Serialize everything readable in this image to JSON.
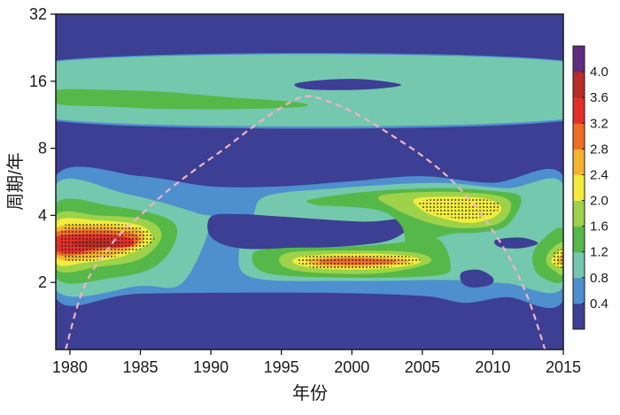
{
  "chart_data": {
    "type": "heatmap",
    "subtype": "wavelet power spectrum",
    "title": "",
    "xlabel": "年份",
    "ylabel": "周期/年",
    "x_range": [
      1979,
      2015
    ],
    "y_range": [
      1,
      32
    ],
    "y_scale": "log2",
    "x_ticks": [
      "1980",
      "1985",
      "1990",
      "1995",
      "2000",
      "2005",
      "2010",
      "2015"
    ],
    "y_ticks": [
      "2",
      "4",
      "8",
      "16",
      "32"
    ],
    "colorbar": {
      "labels": [
        "0.4",
        "0.8",
        "1.2",
        "1.6",
        "2.0",
        "2.4",
        "2.8",
        "3.2",
        "3.6",
        "4.0"
      ],
      "colors": [
        "#3c3f93",
        "#4e8fce",
        "#74c8ae",
        "#56b848",
        "#9dd24a",
        "#f2ec3c",
        "#f5b333",
        "#ef6d25",
        "#e1302a",
        "#b82d27",
        "#5e2d80"
      ]
    },
    "cone_of_influence": {
      "x": [
        1979.7,
        1981,
        1983,
        1985,
        1987,
        1989,
        1991,
        1993,
        1995,
        1996.8,
        1999,
        2001,
        2003,
        2005,
        2007,
        2009,
        2011,
        2012.5,
        2013.7
      ],
      "y": [
        1.0,
        1.9,
        3.0,
        4.0,
        5.2,
        6.5,
        8.0,
        10.0,
        12.2,
        13.7,
        12.5,
        10.8,
        9.0,
        7.4,
        5.8,
        4.2,
        2.7,
        1.7,
        1.0
      ],
      "color": "#f3b3c3",
      "style": "dashed"
    },
    "background_color": "#3c3f93",
    "power_regions": [
      {
        "level": 0.4,
        "color": "#4e8fce",
        "points": [
          [
            1979,
            19.8
          ],
          [
            2015,
            19.8
          ],
          [
            2015,
            10.6
          ],
          [
            1979,
            10.6
          ]
        ]
      },
      {
        "level": 0.8,
        "color": "#74c8ae",
        "points": [
          [
            1979,
            19.6
          ],
          [
            2015,
            19.6
          ],
          [
            2015,
            10.8
          ],
          [
            1979,
            10.8
          ]
        ]
      },
      {
        "level": 0.4,
        "color": "#3c3f93",
        "points": [
          [
            1996,
            15.6
          ],
          [
            1998.5,
            16.3
          ],
          [
            2001,
            16.3
          ],
          [
            2003.5,
            15.4
          ],
          [
            2001,
            14.7
          ],
          [
            1997,
            14.7
          ]
        ]
      },
      {
        "level": 1.2,
        "color": "#56b848",
        "points": [
          [
            1979,
            14.6
          ],
          [
            1983,
            14.6
          ],
          [
            1987,
            14.3
          ],
          [
            1991,
            13.6
          ],
          [
            1996,
            12.9
          ],
          [
            1996.5,
            12.3
          ],
          [
            1992,
            12.0
          ],
          [
            1987,
            12.0
          ],
          [
            1983,
            12.3
          ],
          [
            1979,
            12.7
          ]
        ]
      },
      {
        "level": 0.4,
        "color": "#4e8fce",
        "points": [
          [
            1979,
            6.0
          ],
          [
            1985,
            6.0
          ],
          [
            1990,
            5.4
          ],
          [
            1995,
            5.4
          ],
          [
            2000,
            5.7
          ],
          [
            2005,
            6.0
          ],
          [
            2010,
            5.6
          ],
          [
            2015,
            6.0
          ],
          [
            2015,
            1.67
          ],
          [
            2011,
            1.72
          ],
          [
            2008,
            1.62
          ],
          [
            2005,
            1.74
          ],
          [
            1997,
            1.8
          ],
          [
            1985,
            1.78
          ],
          [
            1979,
            1.7
          ]
        ]
      },
      {
        "level": 0.8,
        "color": "#74c8ae",
        "points": [
          [
            1979,
            5.5
          ],
          [
            1984,
            5.0
          ],
          [
            1989,
            4.1
          ],
          [
            1990,
            3.7
          ],
          [
            1988,
            2.0
          ],
          [
            1985,
            1.93
          ],
          [
            1979,
            1.85
          ]
        ]
      },
      {
        "level": 0.8,
        "color": "#74c8ae",
        "points": [
          [
            1994,
            4.9
          ],
          [
            1999,
            5.3
          ],
          [
            2006,
            5.6
          ],
          [
            2011,
            5.3
          ],
          [
            2015,
            5.5
          ],
          [
            2015,
            1.92
          ],
          [
            2011,
            1.98
          ],
          [
            2007,
            2.05
          ],
          [
            2000,
            2.03
          ],
          [
            1993,
            2.1
          ],
          [
            1992,
            2.8
          ],
          [
            1993,
            4.0
          ]
        ]
      },
      {
        "level": 0.4,
        "color": "#3c3f93",
        "points": [
          [
            1979,
            4.45
          ],
          [
            1981,
            4.5
          ],
          [
            1982.2,
            4.3
          ],
          [
            1981,
            4.05
          ],
          [
            1979,
            4.0
          ]
        ]
      },
      {
        "level": 0.4,
        "color": "#3c3f93",
        "points": [
          [
            1990,
            3.95
          ],
          [
            1992,
            4.05
          ],
          [
            1995,
            3.95
          ],
          [
            2001,
            3.75
          ],
          [
            2004.5,
            3.9
          ],
          [
            2003,
            3.15
          ],
          [
            2000,
            2.92
          ],
          [
            1996,
            2.85
          ],
          [
            1992,
            2.85
          ],
          [
            1990,
            3.2
          ]
        ]
      },
      {
        "level": 1.2,
        "color": "#56b848",
        "points": [
          [
            1979,
            4.5
          ],
          [
            1983,
            4.4
          ],
          [
            1987,
            3.85
          ],
          [
            1987.5,
            3.1
          ],
          [
            1986,
            2.35
          ],
          [
            1983,
            2.1
          ],
          [
            1979,
            2.1
          ]
        ]
      },
      {
        "level": 1.6,
        "color": "#9dd24a",
        "points": [
          [
            1979,
            4.0
          ],
          [
            1982,
            4.0
          ],
          [
            1985.5,
            3.8
          ],
          [
            1986.5,
            3.2
          ],
          [
            1985,
            2.55
          ],
          [
            1982,
            2.35
          ],
          [
            1979,
            2.3
          ]
        ]
      },
      {
        "level": 2.0,
        "color": "#f2ec3c",
        "points": [
          [
            1979,
            3.75
          ],
          [
            1982,
            3.8
          ],
          [
            1985,
            3.6
          ],
          [
            1985.8,
            3.1
          ],
          [
            1984,
            2.65
          ],
          [
            1981,
            2.45
          ],
          [
            1979,
            2.45
          ]
        ]
      },
      {
        "level": 2.4,
        "color": "#f5b333",
        "points": [
          [
            1979,
            3.5
          ],
          [
            1982,
            3.6
          ],
          [
            1984.8,
            3.45
          ],
          [
            1985.2,
            3.05
          ],
          [
            1983.5,
            2.7
          ],
          [
            1981,
            2.55
          ],
          [
            1979,
            2.6
          ]
        ]
      },
      {
        "level": 2.8,
        "color": "#ef6d25",
        "points": [
          [
            1979,
            3.35
          ],
          [
            1982,
            3.45
          ],
          [
            1984.6,
            3.3
          ],
          [
            1984.6,
            2.95
          ],
          [
            1982.5,
            2.8
          ],
          [
            1980.5,
            2.65
          ],
          [
            1979,
            2.7
          ]
        ]
      },
      {
        "level": 3.2,
        "color": "#e1302a",
        "points": [
          [
            1979,
            3.2
          ],
          [
            1982,
            3.3
          ],
          [
            1984.3,
            3.15
          ],
          [
            1984.2,
            2.9
          ],
          [
            1982,
            2.85
          ],
          [
            1980.5,
            2.72
          ],
          [
            1979,
            2.78
          ]
        ]
      },
      {
        "level": 3.6,
        "color": "#b82d27",
        "points": [
          [
            1980.3,
            3.05
          ],
          [
            1982.5,
            3.12
          ],
          [
            1983.6,
            2.98
          ],
          [
            1982,
            2.88
          ],
          [
            1980.5,
            2.92
          ]
        ]
      },
      {
        "level": 1.2,
        "color": "#56b848",
        "points": [
          [
            1993,
            2.7
          ],
          [
            1995,
            2.85
          ],
          [
            1999,
            2.88
          ],
          [
            2003,
            3.0
          ],
          [
            2006,
            3.15
          ],
          [
            2007,
            2.4
          ],
          [
            2006,
            2.15
          ],
          [
            2000,
            2.1
          ],
          [
            1994,
            2.2
          ]
        ]
      },
      {
        "level": 1.6,
        "color": "#9dd24a",
        "points": [
          [
            1995.5,
            2.72
          ],
          [
            2000,
            2.78
          ],
          [
            2004.5,
            2.72
          ],
          [
            2005.5,
            2.45
          ],
          [
            2002,
            2.2
          ],
          [
            1997,
            2.22
          ],
          [
            1995,
            2.4
          ]
        ]
      },
      {
        "level": 2.0,
        "color": "#f2ec3c",
        "points": [
          [
            1996.3,
            2.6
          ],
          [
            2000,
            2.7
          ],
          [
            2004,
            2.63
          ],
          [
            2004.8,
            2.45
          ],
          [
            2002,
            2.3
          ],
          [
            1998,
            2.3
          ],
          [
            1996,
            2.42
          ]
        ]
      },
      {
        "level": 2.4,
        "color": "#f5b333",
        "points": [
          [
            1997,
            2.55
          ],
          [
            2000,
            2.62
          ],
          [
            2003.5,
            2.55
          ],
          [
            2003.8,
            2.45
          ],
          [
            2001,
            2.36
          ],
          [
            1998,
            2.36
          ],
          [
            1997,
            2.45
          ]
        ]
      },
      {
        "level": 2.8,
        "color": "#ef6d25",
        "points": [
          [
            1997.8,
            2.52
          ],
          [
            2000,
            2.57
          ],
          [
            2002.8,
            2.52
          ],
          [
            2002.8,
            2.45
          ],
          [
            2000.5,
            2.4
          ],
          [
            1998.2,
            2.42
          ]
        ]
      },
      {
        "level": 1.2,
        "color": "#56b848",
        "points": [
          [
            1997,
            4.7
          ],
          [
            2001,
            5.1
          ],
          [
            2006,
            5.3
          ],
          [
            2010,
            5.15
          ],
          [
            2012,
            4.8
          ],
          [
            2011,
            3.6
          ],
          [
            2009,
            3.35
          ],
          [
            2007,
            3.3
          ],
          [
            2005,
            3.0
          ],
          [
            2004,
            2.8
          ],
          [
            2003.5,
            3.6
          ],
          [
            2002,
            4.2
          ],
          [
            1999,
            4.4
          ],
          [
            1997.5,
            4.45
          ]
        ]
      },
      {
        "level": 1.6,
        "color": "#9dd24a",
        "points": [
          [
            2002,
            4.9
          ],
          [
            2006,
            5.1
          ],
          [
            2010,
            4.95
          ],
          [
            2011.3,
            4.5
          ],
          [
            2010.5,
            3.7
          ],
          [
            2008,
            3.5
          ],
          [
            2005.5,
            3.7
          ],
          [
            2003,
            4.3
          ]
        ]
      },
      {
        "level": 2.0,
        "color": "#f2ec3c",
        "points": [
          [
            2004.5,
            4.75
          ],
          [
            2007,
            4.85
          ],
          [
            2009.5,
            4.75
          ],
          [
            2010.6,
            4.35
          ],
          [
            2010,
            3.9
          ],
          [
            2008.2,
            3.7
          ],
          [
            2006,
            3.95
          ],
          [
            2004.8,
            4.3
          ]
        ]
      },
      {
        "level": 0.4,
        "color": "#3c3f93",
        "points": [
          [
            2007.8,
            2.22
          ],
          [
            2009,
            2.28
          ],
          [
            2010,
            2.1
          ],
          [
            2009.8,
            1.95
          ],
          [
            2008.5,
            1.9
          ],
          [
            2007.8,
            2.0
          ]
        ]
      },
      {
        "level": 0.4,
        "color": "#3c3f93",
        "points": [
          [
            2010.2,
            3.1
          ],
          [
            2012,
            3.18
          ],
          [
            2013.2,
            3.0
          ],
          [
            2012,
            2.85
          ],
          [
            2010.5,
            2.88
          ]
        ]
      },
      {
        "level": 1.2,
        "color": "#56b848",
        "points": [
          [
            2015,
            3.45
          ],
          [
            2013.5,
            3.1
          ],
          [
            2012.8,
            2.6
          ],
          [
            2013.3,
            2.15
          ],
          [
            2015,
            2.05
          ]
        ]
      },
      {
        "level": 1.6,
        "color": "#9dd24a",
        "points": [
          [
            2015,
            3.0
          ],
          [
            2014,
            2.75
          ],
          [
            2013.8,
            2.45
          ],
          [
            2014.4,
            2.25
          ],
          [
            2015,
            2.2
          ]
        ]
      },
      {
        "level": 2.0,
        "color": "#f2ec3c",
        "points": [
          [
            2015,
            2.8
          ],
          [
            2014.3,
            2.62
          ],
          [
            2014.2,
            2.45
          ],
          [
            2015,
            2.35
          ]
        ]
      },
      {
        "level": 2.4,
        "color": "#f5b333",
        "points": [
          [
            2015,
            2.68
          ],
          [
            2014.6,
            2.55
          ],
          [
            2014.6,
            2.45
          ],
          [
            2015,
            2.42
          ]
        ]
      }
    ],
    "significance_regions": [
      {
        "points": [
          [
            1979.6,
            3.6
          ],
          [
            1982,
            3.7
          ],
          [
            1984.8,
            3.55
          ],
          [
            1986,
            3.15
          ],
          [
            1984.6,
            2.75
          ],
          [
            1981.5,
            2.5
          ],
          [
            1979.6,
            2.55
          ]
        ]
      },
      {
        "points": [
          [
            1996.5,
            2.6
          ],
          [
            2000,
            2.7
          ],
          [
            2004.3,
            2.6
          ],
          [
            2004.5,
            2.45
          ],
          [
            2001.5,
            2.3
          ],
          [
            1998,
            2.3
          ],
          [
            1996.3,
            2.42
          ]
        ]
      },
      {
        "points": [
          [
            2005,
            4.65
          ],
          [
            2007.5,
            4.8
          ],
          [
            2010,
            4.65
          ],
          [
            2010.5,
            4.3
          ],
          [
            2009.5,
            3.95
          ],
          [
            2007.8,
            3.85
          ],
          [
            2006,
            4.05
          ],
          [
            2005,
            4.3
          ]
        ]
      },
      {
        "points": [
          [
            2014.4,
            2.75
          ],
          [
            2015,
            2.78
          ],
          [
            2015,
            2.32
          ],
          [
            2014.3,
            2.45
          ]
        ]
      }
    ]
  }
}
